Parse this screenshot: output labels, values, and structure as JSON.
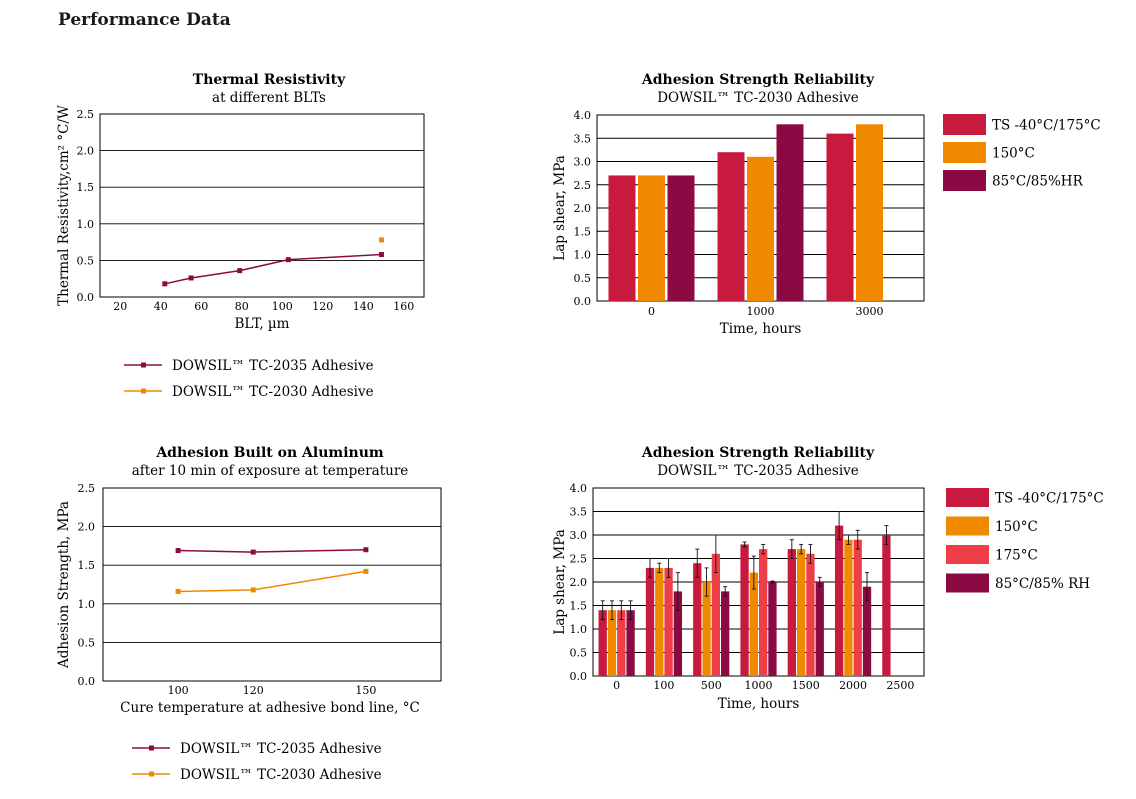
{
  "page": {
    "title": "Performance Data"
  },
  "colors": {
    "ts": "#c8193f",
    "c150": "#ef8a00",
    "c175": "#ee3f48",
    "hr": "#8c0a44",
    "tc2035": "#8c0a44",
    "tc2030": "#ef8a00"
  },
  "chart_data": [
    {
      "type": "line",
      "title": "Thermal Resistivity",
      "subtitle": "at different BLTs",
      "xlabel": "BLT, µm",
      "ylabel": "Thermal Resistivity,cm² °C/W",
      "xlim": [
        10,
        170
      ],
      "ylim": [
        0,
        2.5
      ],
      "xticks": [
        "20",
        "40",
        "60",
        "80",
        "100",
        "120",
        "140",
        "160"
      ],
      "yticks": [
        "0.0",
        "0.5",
        "1.0",
        "1.5",
        "2.0",
        "2.5"
      ],
      "grid": "horizontal",
      "legend": "below",
      "series": [
        {
          "name": "DOWSIL™ TC-2035 Adhesive",
          "x": [
            42,
            55,
            79,
            103,
            149
          ],
          "y": [
            0.18,
            0.26,
            0.36,
            0.51,
            0.58
          ]
        },
        {
          "name": "DOWSIL™ TC-2030 Adhesive",
          "x": [
            149
          ],
          "y": [
            0.78
          ]
        }
      ]
    },
    {
      "type": "bar",
      "title": "Adhesion Strength Reliability",
      "subtitle": "DOWSIL™ TC-2030 Adhesive",
      "xlabel": "Time, hours",
      "ylabel": "Lap shear, MPa",
      "ylim": [
        0,
        4
      ],
      "yticks": [
        "0.0",
        "0.5",
        "1.0",
        "1.5",
        "2.0",
        "2.5",
        "3.0",
        "3.5",
        "4.0"
      ],
      "grid": "horizontal",
      "legend": "right",
      "categories": [
        "0",
        "1000",
        "3000"
      ],
      "series": [
        {
          "name": "TS -40°C/175°C",
          "values": [
            2.7,
            3.2,
            3.6
          ]
        },
        {
          "name": "150°C",
          "values": [
            2.7,
            3.1,
            3.8
          ]
        },
        {
          "name": "85°C/85%HR",
          "values": [
            2.7,
            3.8,
            null
          ]
        }
      ]
    },
    {
      "type": "line",
      "title": "Adhesion Built on Aluminum",
      "subtitle": "after 10 min of exposure at temperature",
      "xlabel": "Cure temperature at adhesive bond line, °C",
      "ylabel": "Adhesion Strength, MPa",
      "categories": [
        "100",
        "120",
        "150"
      ],
      "ylim": [
        0,
        2.5
      ],
      "yticks": [
        "0.0",
        "0.5",
        "1.0",
        "1.5",
        "2.0",
        "2.5"
      ],
      "grid": "horizontal",
      "legend": "below",
      "series": [
        {
          "name": "DOWSIL™ TC-2035 Adhesive",
          "values": [
            1.69,
            1.67,
            1.7
          ]
        },
        {
          "name": "DOWSIL™ TC-2030 Adhesive",
          "values": [
            1.16,
            1.18,
            1.42
          ]
        }
      ]
    },
    {
      "type": "bar",
      "title": "Adhesion Strength Reliability",
      "subtitle": "DOWSIL™ TC-2035 Adhesive",
      "xlabel": "Time, hours",
      "ylabel": "Lap shear, MPa",
      "ylim": [
        0,
        4
      ],
      "yticks": [
        "0.0",
        "0.5",
        "1.0",
        "1.5",
        "2.0",
        "2.5",
        "3.0",
        "3.5",
        "4.0"
      ],
      "grid": "horizontal",
      "legend": "right",
      "categories": [
        "0",
        "100",
        "500",
        "1000",
        "1500",
        "2000",
        "2500"
      ],
      "series": [
        {
          "name": "TS -40°C/175°C",
          "values": [
            1.4,
            2.3,
            2.4,
            2.8,
            2.7,
            3.2,
            3.0
          ],
          "err": [
            0.2,
            0.2,
            0.3,
            0.05,
            0.2,
            0.3,
            0.2
          ]
        },
        {
          "name": "150°C",
          "values": [
            1.4,
            2.3,
            2.0,
            2.2,
            2.7,
            2.9,
            null
          ],
          "err": [
            0.2,
            0.1,
            0.3,
            0.35,
            0.1,
            0.1,
            null
          ]
        },
        {
          "name": "175°C",
          "values": [
            1.4,
            2.3,
            2.6,
            2.7,
            2.6,
            2.9,
            null
          ],
          "err": [
            0.2,
            0.2,
            0.4,
            0.1,
            0.2,
            0.2,
            null
          ]
        },
        {
          "name": "85°C/85% RH",
          "values": [
            1.4,
            1.8,
            1.8,
            2.0,
            2.0,
            1.9,
            null
          ],
          "err": [
            0.2,
            0.4,
            0.1,
            0.02,
            0.1,
            0.3,
            null
          ]
        }
      ]
    }
  ]
}
